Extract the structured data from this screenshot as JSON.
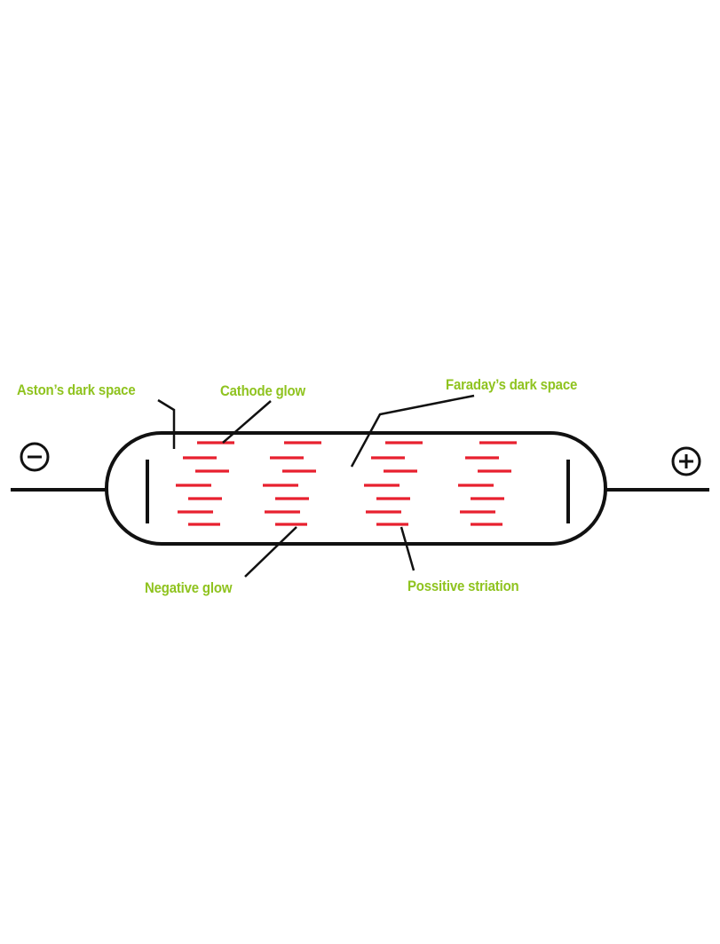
{
  "labels": {
    "aston_dark_space": "Aston’s dark space",
    "cathode_glow": "Cathode glow",
    "faradays_dark_space": "Faraday’s dark space",
    "negative_glow": "Negative glow",
    "positive_striation": "Possitive striation"
  },
  "terminals": {
    "negative_symbol": "minus-icon",
    "positive_symbol": "plus-icon"
  },
  "colors": {
    "label": "#8fc31f",
    "striation": "#e8202f",
    "line": "#111111",
    "background": "#ffffff"
  }
}
